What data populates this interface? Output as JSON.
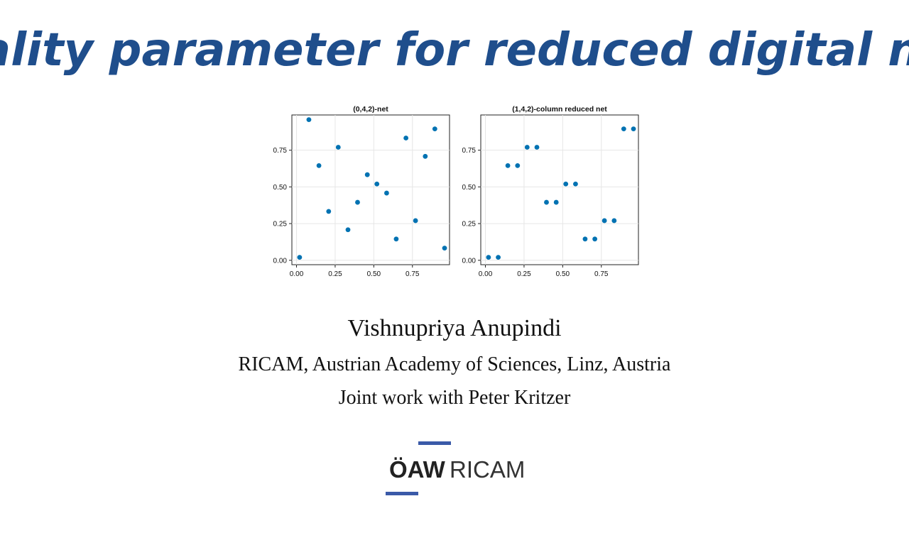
{
  "slide": {
    "title": "Quality parameter for reduced digital nets",
    "author": "Vishnupriya Anupindi",
    "affiliation": "RICAM, Austrian Academy of Sciences, Linz, Austria",
    "joint_work": "Joint work with Peter Kritzer",
    "title_color": "#1f4e8c",
    "logo": {
      "text_bold": "ÖAW",
      "text_light": "RICAM",
      "accent_color": "#3a5aa8"
    }
  },
  "chart_data": [
    {
      "type": "scatter",
      "title": "(0,4,2)-net",
      "xlabel": "",
      "ylabel": "",
      "xlim": [
        -0.03,
        0.99
      ],
      "ylim": [
        -0.03,
        0.99
      ],
      "xticks": [
        0.0,
        0.25,
        0.5,
        0.75
      ],
      "yticks": [
        0.0,
        0.25,
        0.5,
        0.75
      ],
      "xtick_labels": [
        "0.00",
        "0.25",
        "0.50",
        "0.75"
      ],
      "ytick_labels": [
        "0.00",
        "0.25",
        "0.50",
        "0.75"
      ],
      "grid": true,
      "marker_color": "#0072b2",
      "x": [
        0.02,
        0.08,
        0.145,
        0.208,
        0.27,
        0.333,
        0.395,
        0.458,
        0.52,
        0.583,
        0.645,
        0.708,
        0.77,
        0.833,
        0.895,
        0.958
      ],
      "y": [
        0.02,
        0.958,
        0.645,
        0.333,
        0.77,
        0.208,
        0.395,
        0.583,
        0.52,
        0.458,
        0.145,
        0.833,
        0.27,
        0.708,
        0.895,
        0.083
      ]
    },
    {
      "type": "scatter",
      "title": "(1,4,2)-column reduced net",
      "xlabel": "",
      "ylabel": "",
      "xlim": [
        -0.03,
        0.99
      ],
      "ylim": [
        -0.03,
        0.99
      ],
      "xticks": [
        0.0,
        0.25,
        0.5,
        0.75
      ],
      "yticks": [
        0.0,
        0.25,
        0.5,
        0.75
      ],
      "xtick_labels": [
        "0.00",
        "0.25",
        "0.50",
        "0.75"
      ],
      "ytick_labels": [
        "0.00",
        "0.25",
        "0.50",
        "0.75"
      ],
      "grid": true,
      "marker_color": "#0072b2",
      "x": [
        0.02,
        0.083,
        0.145,
        0.208,
        0.27,
        0.333,
        0.395,
        0.458,
        0.52,
        0.583,
        0.645,
        0.708,
        0.77,
        0.833,
        0.895,
        0.958
      ],
      "y": [
        0.02,
        0.02,
        0.645,
        0.645,
        0.77,
        0.77,
        0.395,
        0.395,
        0.52,
        0.52,
        0.145,
        0.145,
        0.27,
        0.27,
        0.895,
        0.895
      ]
    }
  ]
}
